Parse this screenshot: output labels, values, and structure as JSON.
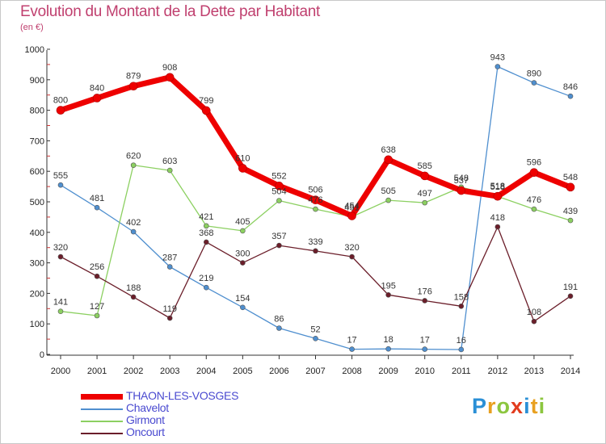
{
  "page": {
    "title": "Evolution du Montant de la Dette par Habitant",
    "subtitle": "(en €)",
    "brand": "Proxiti",
    "brand_colors": [
      "#2a8fd6",
      "#e8a020",
      "#8cc63f",
      "#e23c1e",
      "#2a8fd6",
      "#e8a020",
      "#8cc63f"
    ]
  },
  "chart_data": {
    "type": "line",
    "title": "Evolution du Montant de la Dette par Habitant",
    "subtitle": "(en €)",
    "xlabel": "",
    "ylabel": "",
    "x": [
      "2000",
      "2001",
      "2002",
      "2003",
      "2004",
      "2005",
      "2006",
      "2007",
      "2008",
      "2009",
      "2010",
      "2011",
      "2012",
      "2013",
      "2014"
    ],
    "ylim": [
      0,
      1000
    ],
    "yticks": [
      0,
      100,
      200,
      300,
      400,
      500,
      600,
      700,
      800,
      900,
      1000
    ],
    "grid": false,
    "legend_position": "bottom-left",
    "series": [
      {
        "name": "THAON-LES-VOSGES",
        "color": "#ee0000",
        "values": [
          800,
          840,
          879,
          908,
          799,
          610,
          552,
          506,
          454,
          638,
          585,
          537,
          518,
          596,
          548
        ]
      },
      {
        "name": "Chavelot",
        "color": "#4f8fcf",
        "values": [
          555,
          481,
          402,
          287,
          219,
          154,
          86,
          52,
          17,
          18,
          17,
          16,
          943,
          890,
          846
        ]
      },
      {
        "name": "Girmont",
        "color": "#8cd061",
        "values": [
          141,
          127,
          620,
          603,
          421,
          405,
          504,
          476,
          451,
          505,
          497,
          548,
          518,
          476,
          439
        ]
      },
      {
        "name": "Oncourt",
        "color": "#6b1e2a",
        "values": [
          320,
          256,
          188,
          119,
          368,
          300,
          357,
          339,
          320,
          195,
          176,
          158,
          418,
          108,
          191
        ]
      }
    ]
  }
}
